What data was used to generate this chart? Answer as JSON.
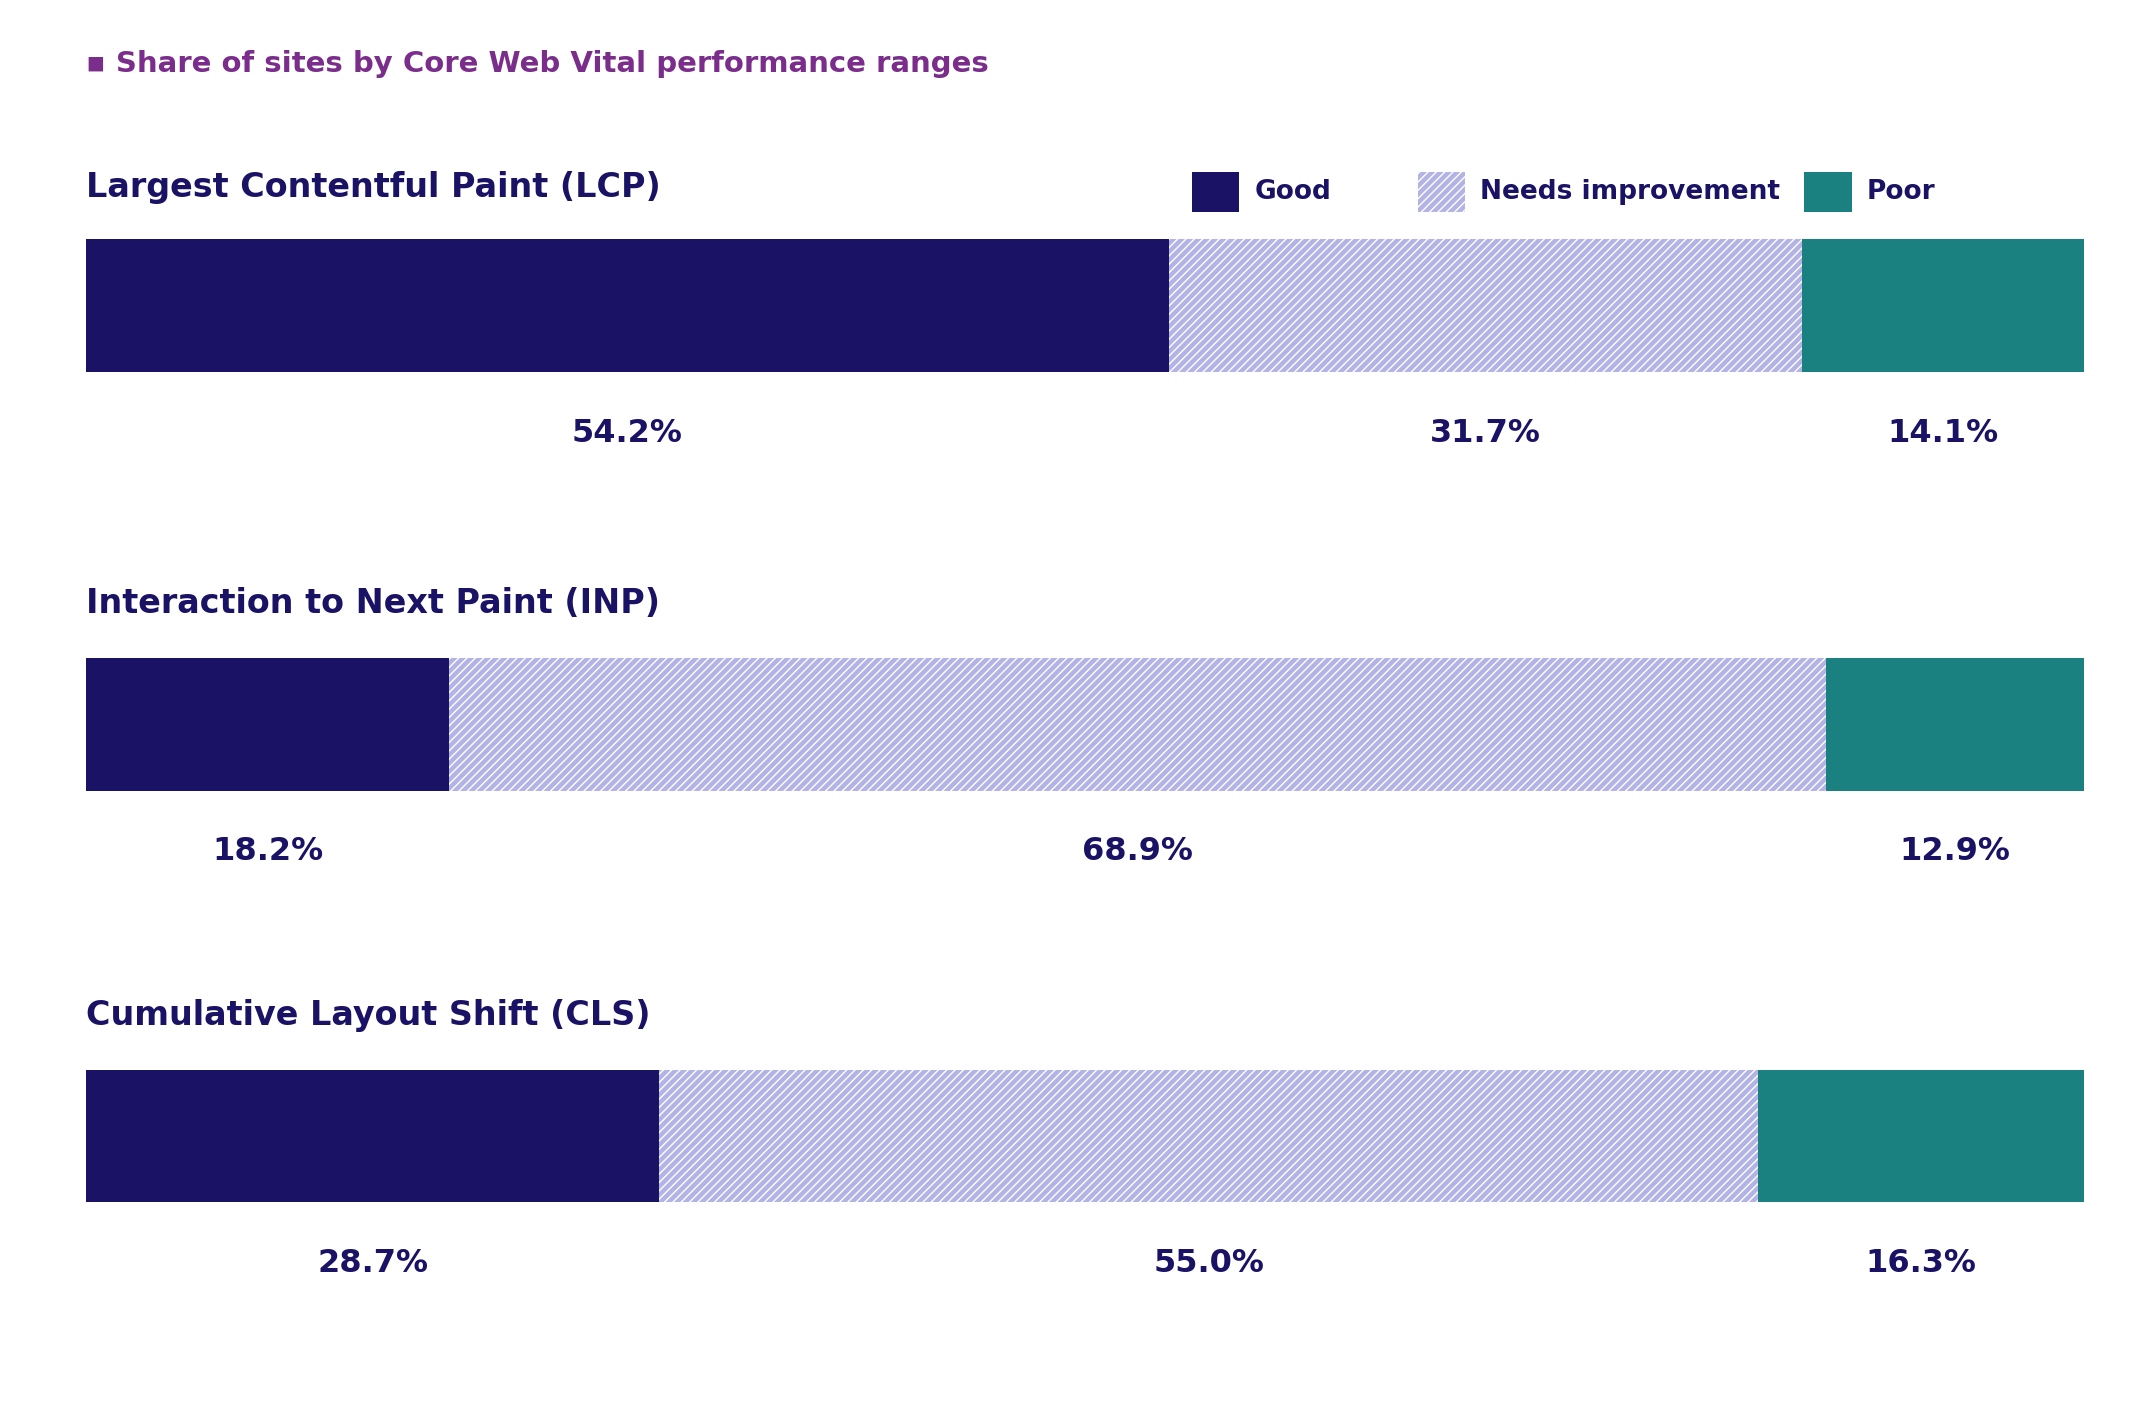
{
  "subtitle": "Share of sites by Core Web Vital performance ranges",
  "subtitle_color": "#7B2D8B",
  "metrics": [
    {
      "name": "Largest Contentful Paint (LCP)",
      "good": 54.2,
      "needs_improvement": 31.7,
      "poor": 14.1
    },
    {
      "name": "Interaction to Next Paint (INP)",
      "good": 18.2,
      "needs_improvement": 68.9,
      "poor": 12.9
    },
    {
      "name": "Cumulative Layout Shift (CLS)",
      "good": 28.7,
      "needs_improvement": 55.0,
      "poor": 16.3
    }
  ],
  "legend": {
    "good_label": "Good",
    "needs_label": "Needs improvement",
    "poor_label": "Poor"
  },
  "colors": {
    "good": "#1a1264",
    "needs_improvement": "#b3b3e6",
    "poor": "#1a8080",
    "title_color": "#1a1264",
    "label_color": "#1a1264",
    "background": "#ffffff"
  },
  "bar_height": 0.55,
  "figsize": [
    21.48,
    14.2
  ],
  "dpi": 100
}
